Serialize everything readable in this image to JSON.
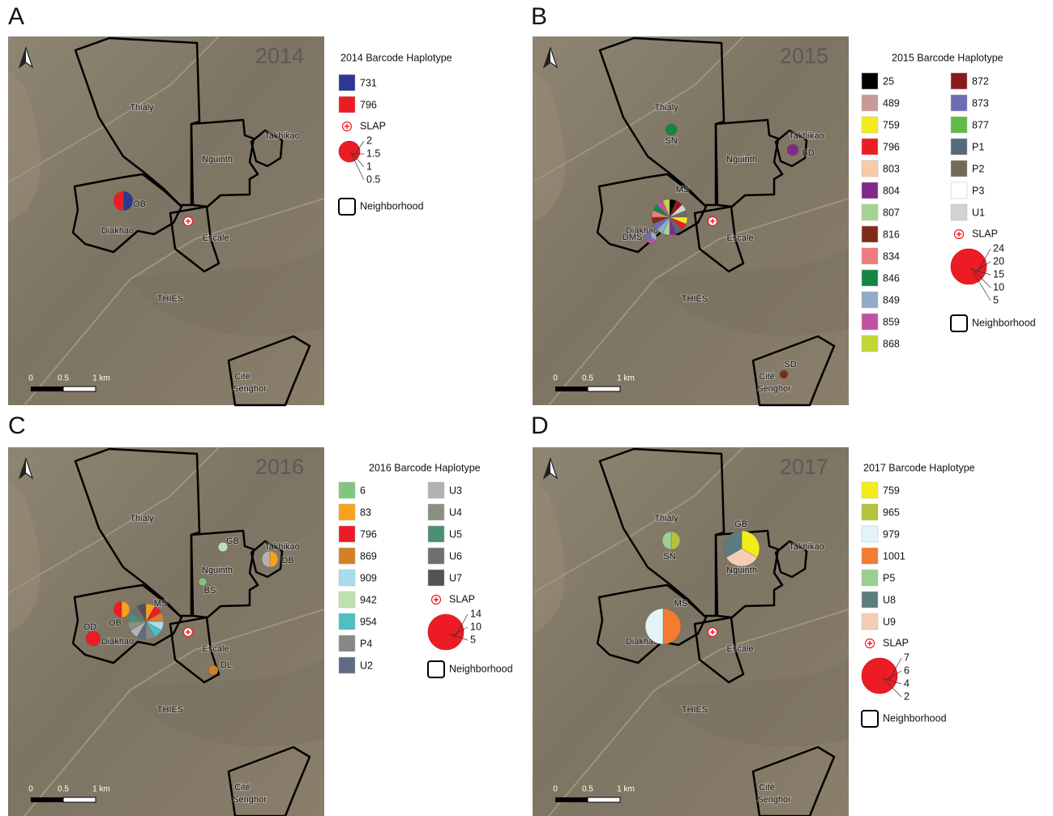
{
  "panels": [
    {
      "letter": "A",
      "year": "2014",
      "legend_title": "2014 Barcode Haplotype",
      "haplotypes": [
        {
          "label": "731",
          "color": "#2b3990"
        },
        {
          "label": "796",
          "color": "#ed1c24"
        }
      ],
      "slap": "SLAP",
      "size_labels": [
        2,
        1.5,
        1,
        0.5
      ],
      "neighborhood": "Neighborhood",
      "sites": [
        "OB"
      ]
    },
    {
      "letter": "B",
      "year": "2015",
      "legend_title": "2015 Barcode Haplotype",
      "haplotypes": [
        {
          "label": "25",
          "color": "#000000"
        },
        {
          "label": "489",
          "color": "#c99a95"
        },
        {
          "label": "759",
          "color": "#f3ec19"
        },
        {
          "label": "796",
          "color": "#ed1c24"
        },
        {
          "label": "803",
          "color": "#f9caa6"
        },
        {
          "label": "804",
          "color": "#7f2a8a"
        },
        {
          "label": "807",
          "color": "#a6d38e"
        },
        {
          "label": "816",
          "color": "#7e2c17"
        },
        {
          "label": "834",
          "color": "#ef7b7c"
        },
        {
          "label": "846",
          "color": "#138644"
        },
        {
          "label": "849",
          "color": "#93aac8"
        },
        {
          "label": "859",
          "color": "#c150a5"
        },
        {
          "label": "868",
          "color": "#c3d633"
        },
        {
          "label": "872",
          "color": "#8b1a1a"
        },
        {
          "label": "873",
          "color": "#6b6cb4"
        },
        {
          "label": "877",
          "color": "#62bb46"
        },
        {
          "label": "P1",
          "color": "#56697a"
        },
        {
          "label": "P2",
          "color": "#756a56"
        },
        {
          "label": "P3",
          "color": "#ffffff"
        },
        {
          "label": "U1",
          "color": "#d1d2d4"
        }
      ],
      "slap": "SLAP",
      "size_labels": [
        24,
        20,
        15,
        10,
        5
      ],
      "neighborhood": "Neighborhood",
      "sites": [
        "SN",
        "BD",
        "MS",
        "DMS",
        "SD"
      ]
    },
    {
      "letter": "C",
      "year": "2016",
      "legend_title": "2016 Barcode Haplotype",
      "haplotypes": [
        {
          "label": "6",
          "color": "#82c57f"
        },
        {
          "label": "83",
          "color": "#f7a21b"
        },
        {
          "label": "796",
          "color": "#ed1c24"
        },
        {
          "label": "869",
          "color": "#d28029"
        },
        {
          "label": "909",
          "color": "#a6dced"
        },
        {
          "label": "942",
          "color": "#bfe0b0"
        },
        {
          "label": "954",
          "color": "#4bc1c1"
        },
        {
          "label": "P4",
          "color": "#8a8685"
        },
        {
          "label": "U2",
          "color": "#5d6c82"
        },
        {
          "label": "U3",
          "color": "#b2b2b2"
        },
        {
          "label": "U4",
          "color": "#87917b"
        },
        {
          "label": "U5",
          "color": "#4b8f73"
        },
        {
          "label": "U6",
          "color": "#706e6f"
        },
        {
          "label": "U7",
          "color": "#555152"
        }
      ],
      "slap": "SLAP",
      "size_labels": [
        14,
        10,
        5
      ],
      "neighborhood": "Neighborhood",
      "sites": [
        "GB",
        "DB",
        "BS",
        "MS",
        "OB",
        "OD",
        "DL"
      ]
    },
    {
      "letter": "D",
      "year": "2017",
      "legend_title": "2017 Barcode Haplotype",
      "haplotypes": [
        {
          "label": "759",
          "color": "#f3ec19"
        },
        {
          "label": "965",
          "color": "#b4c23c"
        },
        {
          "label": "979",
          "color": "#e3f4f8"
        },
        {
          "label": "1001",
          "color": "#f47b2f"
        },
        {
          "label": "P5",
          "color": "#9bcf8f"
        },
        {
          "label": "U8",
          "color": "#5c7c7e"
        },
        {
          "label": "U9",
          "color": "#f4cdb4"
        }
      ],
      "slap": "SLAP",
      "size_labels": [
        7,
        6,
        4,
        2
      ],
      "neighborhood": "Neighborhood",
      "sites": [
        "SN",
        "GB",
        "MS"
      ]
    }
  ],
  "map_labels": {
    "thialy": "Thialy",
    "nguinth": "Nguinth",
    "takhikao": "Takhikao",
    "diakhao": "Diakhao",
    "escale": "Escale",
    "thies": "THIES",
    "cite": "Cité",
    "senghor": "Senghor"
  },
  "scale": [
    "0",
    "0.5",
    "1 km"
  ]
}
